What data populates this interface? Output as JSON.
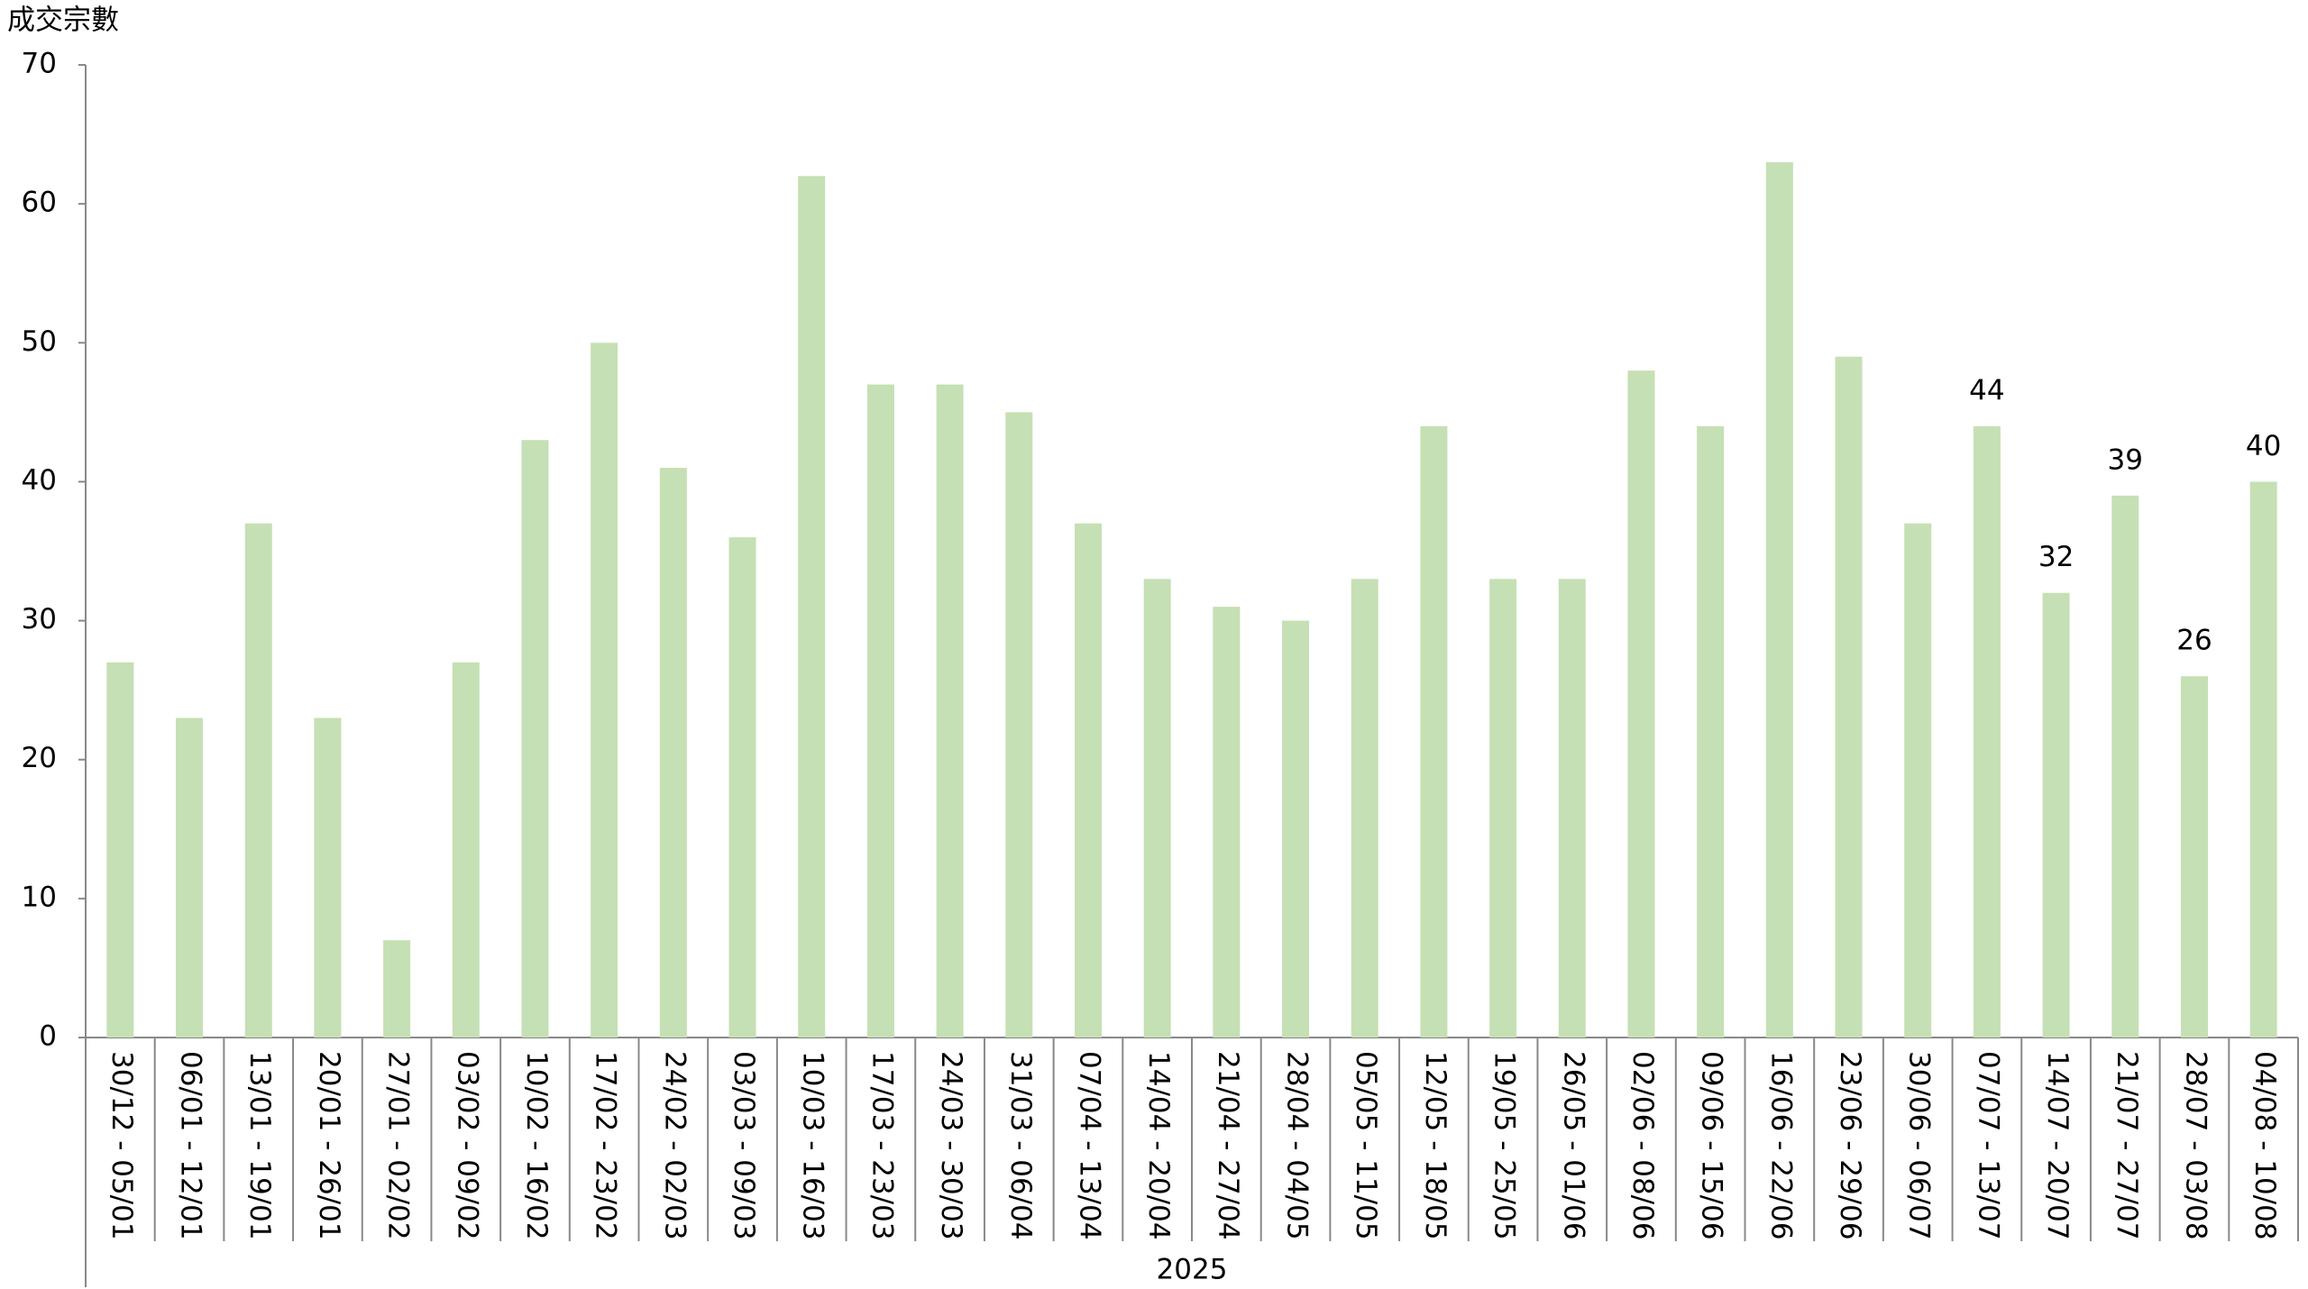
{
  "chart_data": {
    "type": "bar",
    "y_label": "成交宗數",
    "group_label": "2025",
    "categories": [
      "30/12 - 05/01",
      "06/01 - 12/01",
      "13/01 - 19/01",
      "20/01 - 26/01",
      "27/01 - 02/02",
      "03/02 - 09/02",
      "10/02 - 16/02",
      "17/02 - 23/02",
      "24/02 - 02/03",
      "03/03 - 09/03",
      "10/03 - 16/03",
      "17/03 - 23/03",
      "24/03 - 30/03",
      "31/03 - 06/04",
      "07/04 - 13/04",
      "14/04 - 20/04",
      "21/04 - 27/04",
      "28/04 - 04/05",
      "05/05 - 11/05",
      "12/05 - 18/05",
      "19/05 - 25/05",
      "26/05 - 01/06",
      "02/06 - 08/06",
      "09/06 - 15/06",
      "16/06 - 22/06",
      "23/06 - 29/06",
      "30/06 - 06/07",
      "07/07 - 13/07",
      "14/07 - 20/07",
      "21/07 - 27/07",
      "28/07 - 03/08",
      "04/08 - 10/08"
    ],
    "values": [
      27,
      23,
      37,
      23,
      7,
      27,
      43,
      50,
      41,
      36,
      62,
      47,
      47,
      45,
      37,
      33,
      31,
      30,
      33,
      44,
      33,
      33,
      48,
      44,
      63,
      49,
      37,
      44,
      32,
      39,
      26,
      40
    ],
    "value_labels": [
      null,
      null,
      null,
      null,
      null,
      null,
      null,
      null,
      null,
      null,
      null,
      null,
      null,
      null,
      null,
      null,
      null,
      null,
      null,
      null,
      null,
      null,
      null,
      null,
      null,
      null,
      null,
      "44",
      "32",
      "39",
      "26",
      "40"
    ],
    "color": "#c5e0b4",
    "ylim": [
      0,
      70
    ],
    "yticks": [
      0,
      10,
      20,
      30,
      40,
      50,
      60,
      70
    ],
    "grid": false
  }
}
